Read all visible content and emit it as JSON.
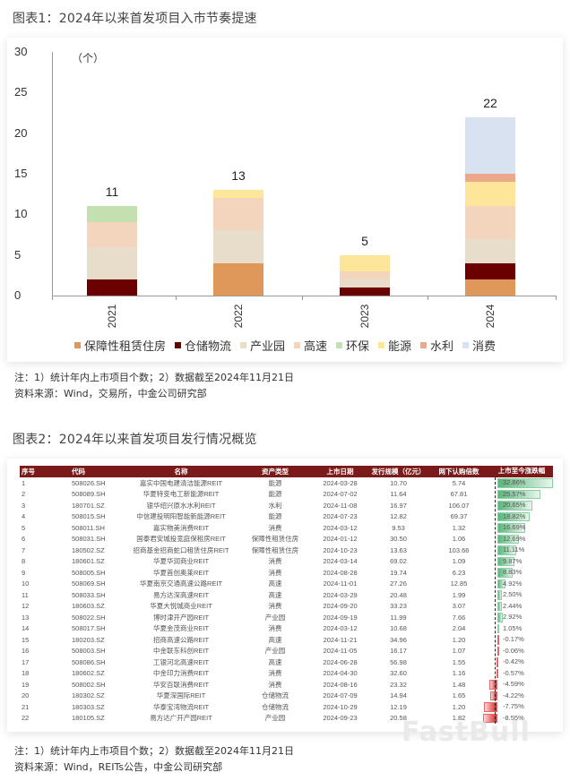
{
  "figure1": {
    "title": "图表1：2024年以来首发项目入市节奏提速",
    "note": "注：1）统计年内上市项目个数；2）数据截至2024年11月21日",
    "source": "资料来源：Wind，交易所，中金公司研究部"
  },
  "figure2": {
    "title": "图表2：2024年以来首发项目发行情况概览",
    "note": "注：1）统计年内上市项目个数；2）数据截至2024年11月21日",
    "source": "资料来源：Wind，REITs公告，中金公司研究部",
    "headers": [
      "序号",
      "代码",
      "名称",
      "资产类型",
      "上市日期",
      "发行规模（亿元）",
      "网下认购倍数",
      "上市至今涨跌幅"
    ],
    "rows": [
      {
        "no": "1",
        "code": "508026.SH",
        "name": "嘉实中国电建清洁能源REIT",
        "type": "能源",
        "date": "2024-03-28",
        "size": "10.70",
        "sub": "5.74",
        "chg": "32.86%",
        "v": 32.86
      },
      {
        "no": "2",
        "code": "508089.SH",
        "name": "华夏特变电工新能源REIT",
        "type": "能源",
        "date": "2024-07-02",
        "size": "11.64",
        "sub": "67.81",
        "chg": "25.57%",
        "v": 25.57
      },
      {
        "no": "3",
        "code": "180701.SZ",
        "name": "银华绍兴原水水利REIT",
        "type": "水利",
        "date": "2024-11-08",
        "size": "16.97",
        "sub": "106.07",
        "chg": "20.65%",
        "v": 20.65
      },
      {
        "no": "4",
        "code": "508015.SH",
        "name": "中信建投明阳智能新能源REIT",
        "type": "能源",
        "date": "2024-07-23",
        "size": "12.82",
        "sub": "69.37",
        "chg": "18.82%",
        "v": 18.82
      },
      {
        "no": "5",
        "code": "508011.SH",
        "name": "嘉实物美消费REIT",
        "type": "消费",
        "date": "2024-03-12",
        "size": "9.53",
        "sub": "1.32",
        "chg": "16.69%",
        "v": 16.69
      },
      {
        "no": "6",
        "code": "508031.SH",
        "name": "国泰君安城投宽庭保租房REIT",
        "type": "保障性租赁住房",
        "date": "2024-01-12",
        "size": "30.50",
        "sub": "1.06",
        "chg": "12.69%",
        "v": 12.69
      },
      {
        "no": "7",
        "code": "180502.SZ",
        "name": "招商基金招商蛇口租赁住房REIT",
        "type": "保障性租赁住房",
        "date": "2024-10-23",
        "size": "13.63",
        "sub": "103.66",
        "chg": "11.11%",
        "v": 11.11
      },
      {
        "no": "8",
        "code": "180601.SZ",
        "name": "华夏华润商业REIT",
        "type": "消费",
        "date": "2024-03-14",
        "size": "69.02",
        "sub": "1.09",
        "chg": "9.87%",
        "v": 9.87
      },
      {
        "no": "9",
        "code": "508005.SH",
        "name": "华夏首创奥莱REIT",
        "type": "消费",
        "date": "2024-08-28",
        "size": "19.74",
        "sub": "6.23",
        "chg": "8.83%",
        "v": 8.83
      },
      {
        "no": "10",
        "code": "508069.SH",
        "name": "华夏南京交通高速公路REIT",
        "type": "高速",
        "date": "2024-11-01",
        "size": "27.26",
        "sub": "12.85",
        "chg": "4.92%",
        "v": 4.92
      },
      {
        "no": "11",
        "code": "508033.SH",
        "name": "易方达深高速REIT",
        "type": "高速",
        "date": "2024-03-29",
        "size": "20.48",
        "sub": "1.99",
        "chg": "2.50%",
        "v": 2.5
      },
      {
        "no": "12",
        "code": "180603.SZ",
        "name": "华夏大悦城商业REIT",
        "type": "消费",
        "date": "2024-09-20",
        "size": "33.23",
        "sub": "3.07",
        "chg": "2.44%",
        "v": 2.44
      },
      {
        "no": "13",
        "code": "508022.SH",
        "name": "博时津开产园REIT",
        "type": "产业园",
        "date": "2024-09-19",
        "size": "11.99",
        "sub": "7.66",
        "chg": "2.92%",
        "v": 2.92
      },
      {
        "no": "14",
        "code": "508017.SH",
        "name": "华夏金茂商业REIT",
        "type": "消费",
        "date": "2024-03-12",
        "size": "10.68",
        "sub": "2.04",
        "chg": "1.05%",
        "v": 1.05
      },
      {
        "no": "15",
        "code": "180203.SZ",
        "name": "招商高速公路REIT",
        "type": "高速",
        "date": "2024-11-21",
        "size": "34.96",
        "sub": "1.20",
        "chg": "-0.17%",
        "v": -0.17
      },
      {
        "no": "16",
        "code": "508003.SH",
        "name": "中金联东科创REIT",
        "type": "产业园",
        "date": "2024-11-05",
        "size": "16.17",
        "sub": "1.07",
        "chg": "-0.06%",
        "v": -0.06
      },
      {
        "no": "17",
        "code": "508086.SH",
        "name": "工银河北高速REIT",
        "type": "高速",
        "date": "2024-06-28",
        "size": "56.98",
        "sub": "1.55",
        "chg": "-0.42%",
        "v": -0.42
      },
      {
        "no": "18",
        "code": "180602.SZ",
        "name": "中金印力消费REIT",
        "type": "消费",
        "date": "2024-04-30",
        "size": "32.60",
        "sub": "1.16",
        "chg": "-0.57%",
        "v": -0.57
      },
      {
        "no": "19",
        "code": "508002.SH",
        "name": "华安百联消费REIT",
        "type": "消费",
        "date": "2024-08-16",
        "size": "23.32",
        "sub": "1.48",
        "chg": "-4.59%",
        "v": -4.59
      },
      {
        "no": "20",
        "code": "180302.SZ",
        "name": "华夏深国际REIT",
        "type": "仓储物流",
        "date": "2024-07-09",
        "size": "14.94",
        "sub": "1.65",
        "chg": "-4.22%",
        "v": -4.22
      },
      {
        "no": "21",
        "code": "180303.SZ",
        "name": "华泰宝湾物流REIT",
        "type": "仓储物流",
        "date": "2024-10-29",
        "size": "12.19",
        "sub": "1.20",
        "chg": "-7.75%",
        "v": -7.75
      },
      {
        "no": "22",
        "code": "180105.SZ",
        "name": "易方达广开产园REIT",
        "type": "产业园",
        "date": "2024-09-23",
        "size": "20.58",
        "sub": "1.82",
        "chg": "-8.55%",
        "v": -8.55
      }
    ]
  },
  "watermark": "FastBull",
  "chart_data": [
    {
      "type": "bar",
      "stacked": true,
      "title": "图表1：2024年以来首发项目入市节奏提速",
      "ylabel": "（个）",
      "xlabel": "",
      "ylim": [
        0,
        30
      ],
      "yticks": [
        0,
        5,
        10,
        15,
        20,
        25,
        30
      ],
      "categories": [
        "2021",
        "2022",
        "2023",
        "2024"
      ],
      "totals": [
        11,
        13,
        5,
        22
      ],
      "legend_position": "bottom",
      "grid": false,
      "series": [
        {
          "name": "保障性租赁住房",
          "color": "#e0975a",
          "values": [
            0,
            4,
            0,
            2
          ]
        },
        {
          "name": "仓储物流",
          "color": "#6b0000",
          "values": [
            2,
            0,
            1,
            2
          ]
        },
        {
          "name": "产业园",
          "color": "#e8dccb",
          "values": [
            4,
            4,
            1,
            3
          ]
        },
        {
          "name": "高速",
          "color": "#f3d4bc",
          "values": [
            3,
            4,
            1,
            4
          ]
        },
        {
          "name": "环保",
          "color": "#c4dfb0",
          "values": [
            2,
            0,
            0,
            0
          ]
        },
        {
          "name": "能源",
          "color": "#fde59a",
          "values": [
            0,
            1,
            2,
            3
          ]
        },
        {
          "name": "水利",
          "color": "#eda88a",
          "values": [
            0,
            0,
            0,
            1
          ]
        },
        {
          "name": "消费",
          "color": "#d8e2f0",
          "values": [
            0,
            0,
            0,
            7
          ]
        }
      ]
    },
    {
      "type": "table",
      "title": "图表2：2024年以来首发项目发行情况概览",
      "columns": [
        "序号",
        "代码",
        "名称",
        "资产类型",
        "上市日期",
        "发行规模（亿元）",
        "网下认购倍数",
        "上市至今涨跌幅"
      ],
      "data_bar_column": "上市至今涨跌幅",
      "data_bar_values": [
        32.86,
        25.57,
        20.65,
        18.82,
        16.69,
        12.69,
        11.11,
        9.87,
        8.83,
        4.92,
        2.5,
        2.44,
        2.92,
        1.05,
        -0.17,
        -0.06,
        -0.42,
        -0.57,
        -4.59,
        -4.22,
        -7.75,
        -8.55
      ]
    }
  ]
}
